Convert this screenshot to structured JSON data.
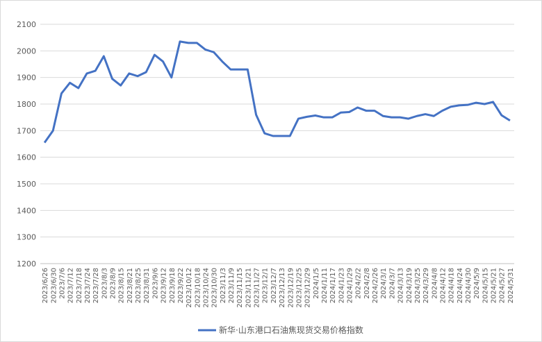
{
  "chart_data": {
    "type": "line",
    "categories": [
      "2023/6/26",
      "2023/6/30",
      "2023/7/6",
      "2023/7/12",
      "2023/7/18",
      "2023/7/24",
      "2023/7/28",
      "2023/8/3",
      "2023/8/9",
      "2023/8/15",
      "2023/8/21",
      "2023/8/25",
      "2023/8/31",
      "2023/9/6",
      "2023/9/12",
      "2023/9/18",
      "2023/9/22",
      "2023/10/12",
      "2023/10/18",
      "2023/10/24",
      "2023/10/30",
      "2023/11/3",
      "2023/11/9",
      "2023/11/15",
      "2023/11/21",
      "2023/11/27",
      "2023/12/1",
      "2023/12/7",
      "2023/12/13",
      "2023/12/19",
      "2023/12/25",
      "2023/12/29",
      "2024/1/5",
      "2024/1/11",
      "2024/1/17",
      "2024/1/23",
      "2024/1/29",
      "2024/2/2",
      "2024/2/8",
      "2024/2/26",
      "2024/3/1",
      "2024/3/7",
      "2024/3/13",
      "2024/3/19",
      "2024/3/25",
      "2024/3/29",
      "2024/4/8",
      "2024/4/12",
      "2024/4/18",
      "2024/4/24",
      "2024/4/30",
      "2024/5/9",
      "2024/5/15",
      "2024/5/21",
      "2024/5/27",
      "2024/5/31"
    ],
    "series": [
      {
        "name": "新华·山东港口石油焦现货交易价格指数",
        "color": "#4472c4",
        "values": [
          1655,
          1700,
          1840,
          1880,
          1860,
          1915,
          1925,
          1980,
          1895,
          1870,
          1915,
          1905,
          1920,
          1985,
          1960,
          1900,
          2035,
          2030,
          2030,
          2005,
          1995,
          1960,
          1930,
          1930,
          1930,
          1760,
          1690,
          1680,
          1680,
          1680,
          1745,
          1752,
          1757,
          1750,
          1750,
          1768,
          1770,
          1787,
          1775,
          1775,
          1755,
          1750,
          1750,
          1745,
          1755,
          1762,
          1755,
          1775,
          1790,
          1795,
          1797,
          1805,
          1800,
          1808,
          1758,
          1738
        ]
      }
    ],
    "ylim": [
      1200,
      2100
    ],
    "yticks": [
      1200,
      1300,
      1400,
      1500,
      1600,
      1700,
      1800,
      1900,
      2000,
      2100
    ],
    "grid": true,
    "legend": "bottom"
  }
}
